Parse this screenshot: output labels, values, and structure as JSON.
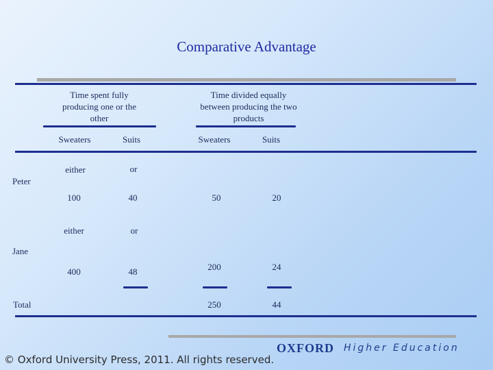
{
  "title": "Comparative Advantage",
  "headers": {
    "left": "Time spent fully producing one or the other",
    "right": "Time divided equally between producing the two products"
  },
  "columns": [
    "Sweaters",
    "Suits",
    "Sweaters",
    "Suits"
  ],
  "rows": {
    "peter": {
      "label": "Peter",
      "either": "either",
      "or": "or",
      "full_sweaters": "100",
      "full_suits": "40",
      "split_sweaters": "50",
      "split_suits": "20"
    },
    "jane": {
      "label": "Jane",
      "either": "either",
      "or": "or",
      "full_sweaters": "400",
      "full_suits": "48",
      "split_sweaters": "200",
      "split_suits": "24"
    },
    "total": {
      "label": "Total",
      "split_sweaters": "250",
      "split_suits": "44"
    }
  },
  "footer": {
    "copyright": "© Oxford University Press, 2011. All rights reserved.",
    "publisher": "OXFORD",
    "tagline": "Higher Education"
  },
  "colors": {
    "title": "#1f2aa0",
    "rule": "#1d2e8e",
    "accent_gray": "#a8a8a8"
  }
}
